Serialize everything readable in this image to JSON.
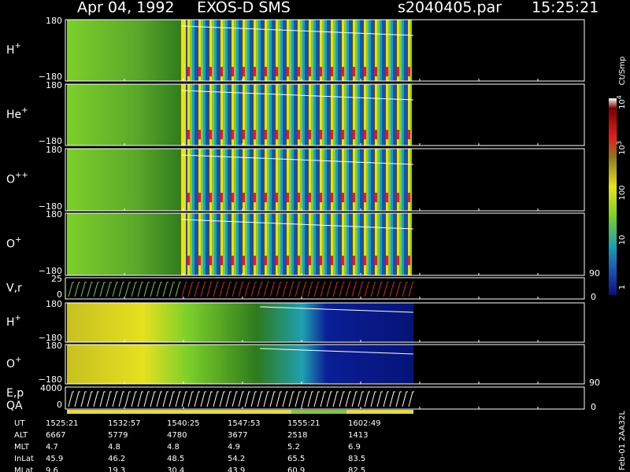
{
  "header": {
    "date": "Apr 04, 1992",
    "instrument": "EXOS-D SMS",
    "file": "s2040405.par",
    "time": "15:25:21"
  },
  "panels": [
    {
      "label": "H",
      "sup": "+",
      "top": "180",
      "bottom": "−180"
    },
    {
      "label": "He",
      "sup": "+",
      "top": "180",
      "bottom": "−180"
    },
    {
      "label": "O",
      "sup": "++",
      "top": "180",
      "bottom": "−180"
    },
    {
      "label": "O",
      "sup": "+",
      "top": "180",
      "bottom": "−180"
    },
    {
      "label": "V,r",
      "top": "25",
      "bottom": "0",
      "right_top": "90",
      "right_bottom": "0"
    },
    {
      "label": "H",
      "sup": "+",
      "top": "180",
      "bottom": "−180"
    },
    {
      "label": "O",
      "sup": "+",
      "top": "180",
      "bottom": "−180"
    },
    {
      "label": "E,p",
      "label2": "QA",
      "top": "4000",
      "bottom": "0",
      "right_top": "90",
      "right_bottom": "0"
    }
  ],
  "colorbar": {
    "unit": "Ct/Smp",
    "ticks": [
      {
        "base": "10",
        "exp": "4"
      },
      {
        "base": "10",
        "exp": "3"
      },
      "100",
      "10",
      "1"
    ]
  },
  "table": {
    "rows": [
      [
        "UT",
        "1525:21",
        "1532:57",
        "1540:25",
        "1547:53",
        "1555:21",
        "1602:49"
      ],
      [
        "ALT",
        "6667",
        "5779",
        "4780",
        "3677",
        "2518",
        "1413"
      ],
      [
        "MLT",
        "4.7",
        "4.8",
        "4.8",
        "4.9",
        "5.2",
        "6.9"
      ],
      [
        "InLat",
        "45.9",
        "46.2",
        "48.5",
        "54.2",
        "65.5",
        "83.5"
      ],
      [
        "MLat",
        "9.6",
        "19.3",
        "30.4",
        "43.9",
        "60.9",
        "82.5"
      ]
    ]
  },
  "footer": "Feb-01 2AA32L"
}
